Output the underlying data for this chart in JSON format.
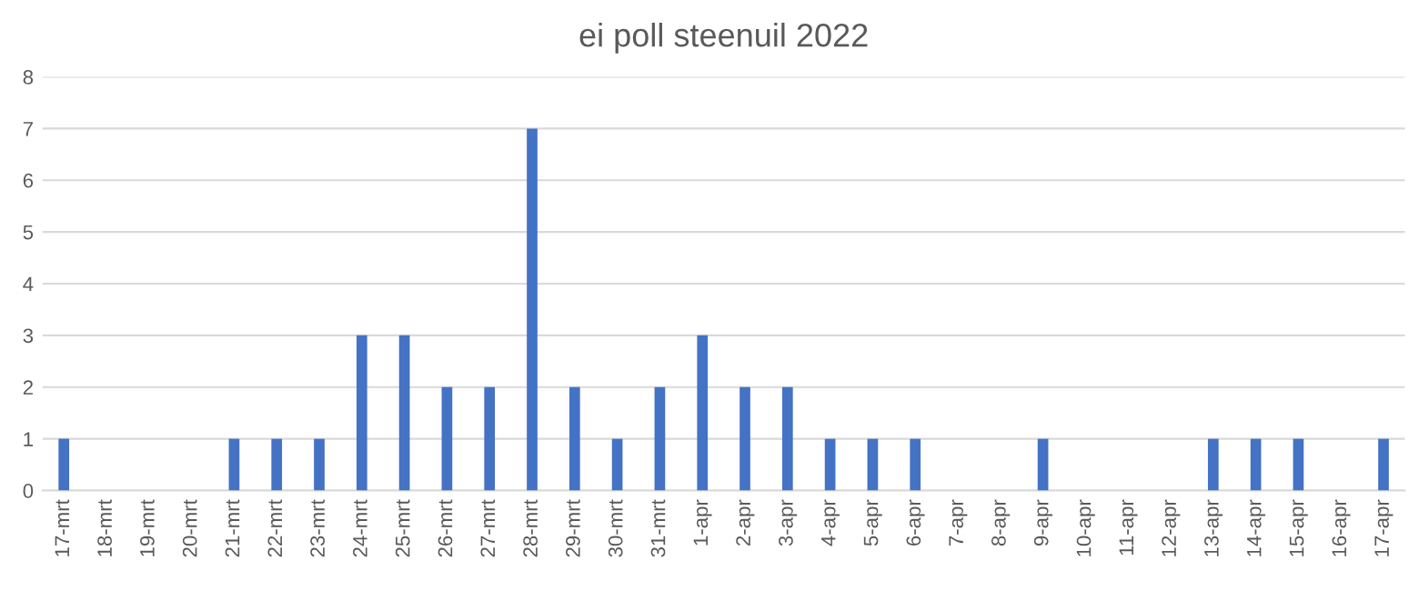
{
  "chart_data": {
    "type": "bar",
    "title": "ei poll steenuil 2022",
    "categories": [
      "17-mrt",
      "18-mrt",
      "19-mrt",
      "20-mrt",
      "21-mrt",
      "22-mrt",
      "23-mrt",
      "24-mrt",
      "25-mrt",
      "26-mrt",
      "27-mrt",
      "28-mrt",
      "29-mrt",
      "30-mrt",
      "31-mrt",
      "1-apr",
      "2-apr",
      "3-apr",
      "4-apr",
      "5-apr",
      "6-apr",
      "7-apr",
      "8-apr",
      "9-apr",
      "10-apr",
      "11-apr",
      "12-apr",
      "13-apr",
      "14-apr",
      "15-apr",
      "16-apr",
      "17-apr"
    ],
    "values": [
      1,
      0,
      0,
      0,
      1,
      1,
      1,
      3,
      3,
      2,
      2,
      7,
      2,
      1,
      2,
      3,
      2,
      2,
      1,
      1,
      1,
      0,
      0,
      1,
      0,
      0,
      0,
      1,
      1,
      1,
      0,
      1
    ],
    "color": "#4472c4",
    "ylim": [
      0,
      8
    ],
    "yticks": [
      0,
      1,
      2,
      3,
      4,
      5,
      6,
      7,
      8
    ],
    "grid": "y",
    "legend": false
  }
}
